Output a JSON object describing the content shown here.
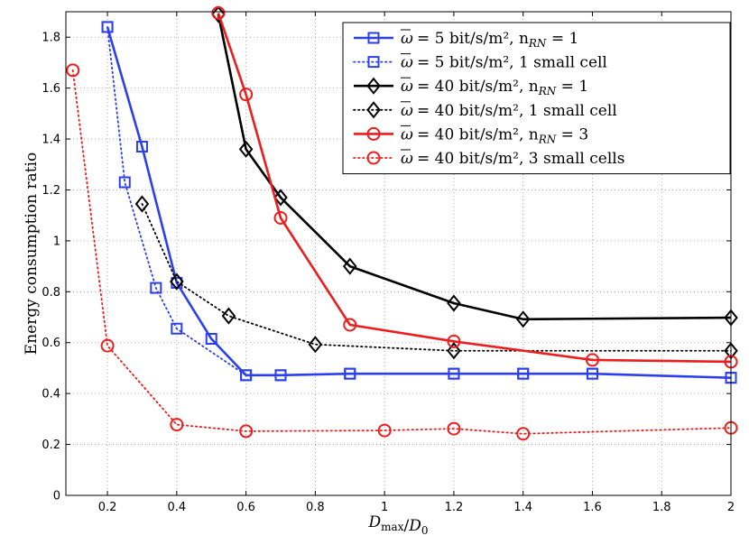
{
  "chart_data": {
    "type": "line",
    "title": "",
    "xlabel": "D_max/D_0",
    "ylabel": "Energy consumption ratio",
    "xlim": [
      0.08,
      2.0
    ],
    "ylim": [
      0,
      1.9
    ],
    "xticks": [
      0.2,
      0.4,
      0.6,
      0.8,
      1,
      1.2,
      1.4,
      1.6,
      1.8,
      2
    ],
    "xtick_labels": [
      "0.2",
      "0.4",
      "0.6",
      "0.8",
      "1",
      "1.2",
      "1.4",
      "1.6",
      "1.8",
      "2"
    ],
    "yticks": [
      0,
      0.2,
      0.4,
      0.6,
      0.8,
      1,
      1.2,
      1.4,
      1.6,
      1.8
    ],
    "ytick_labels": [
      "0",
      "0.2",
      "0.4",
      "0.6",
      "0.8",
      "1",
      "1.2",
      "1.4",
      "1.6",
      "1.8"
    ],
    "grid": true,
    "legend_position": "top-right",
    "series": [
      {
        "name": "ω̄ = 5 bit/s/m², n_RN = 1",
        "legend": "= 5 bit/s/m², n",
        "legend_sub": "RN",
        "legend_tail": "= 1",
        "color": "#2b3ff0",
        "line_style": "solid",
        "marker": "square",
        "x": [
          0.2,
          0.3,
          0.4,
          0.5,
          0.6,
          0.7,
          0.9,
          1.2,
          1.4,
          1.6,
          2.0
        ],
        "values": [
          1.84,
          1.37,
          0.835,
          0.615,
          0.472,
          0.472,
          0.478,
          0.478,
          0.478,
          0.478,
          0.462
        ]
      },
      {
        "name": "ω̄ = 5 bit/s/m², 1 small cell",
        "legend": "= 5 bit/s/m², 1 small cell",
        "legend_sub": "",
        "legend_tail": "",
        "color": "#2b3ff0",
        "line_style": "dotted",
        "marker": "square",
        "x": [
          0.2,
          0.25,
          0.34,
          0.4,
          0.6,
          0.7,
          0.9,
          1.2,
          1.4,
          1.6,
          2.0
        ],
        "values": [
          1.84,
          1.23,
          0.815,
          0.655,
          0.472,
          0.472,
          0.478,
          0.478,
          0.478,
          0.478,
          0.462
        ]
      },
      {
        "name": "ω̄ = 40 bit/s/m², n_RN = 1",
        "legend": "= 40 bit/s/m², n",
        "legend_sub": "RN",
        "legend_tail": "= 1",
        "color": "#000000",
        "line_style": "solid",
        "marker": "diamond",
        "x": [
          0.52,
          0.6,
          0.7,
          0.9,
          1.2,
          1.4,
          2.0
        ],
        "values": [
          1.89,
          1.36,
          1.17,
          0.9,
          0.755,
          0.692,
          0.698
        ]
      },
      {
        "name": "ω̄ = 40 bit/s/m², 1 small cell",
        "legend": "= 40 bit/s/m², 1 small cell",
        "legend_sub": "",
        "legend_tail": "",
        "color": "#000000",
        "line_style": "dotted",
        "marker": "diamond",
        "x": [
          0.3,
          0.4,
          0.55,
          0.8,
          1.2,
          2.0
        ],
        "values": [
          1.145,
          0.84,
          0.705,
          0.593,
          0.568,
          0.568
        ]
      },
      {
        "name": "ω̄ = 40 bit/s/m², n_RN = 3",
        "legend": "= 40 bit/s/m², n",
        "legend_sub": "RN",
        "legend_tail": "= 3",
        "color": "#ee1c1c",
        "line_style": "solid",
        "marker": "circle",
        "x": [
          0.52,
          0.6,
          0.7,
          0.9,
          1.2,
          1.6,
          2.0
        ],
        "values": [
          1.895,
          1.575,
          1.09,
          0.67,
          0.605,
          0.532,
          0.525
        ]
      },
      {
        "name": "ω̄ = 40 bit/s/m², 3 small cells",
        "legend": "= 40 bit/s/m², 3 small cells",
        "legend_sub": "",
        "legend_tail": "",
        "color": "#ee1c1c",
        "line_style": "dotted",
        "marker": "circle",
        "x": [
          0.1,
          0.2,
          0.4,
          0.6,
          1.0,
          1.2,
          1.4,
          2.0
        ],
        "values": [
          1.67,
          0.588,
          0.278,
          0.252,
          0.255,
          0.262,
          0.242,
          0.265
        ]
      }
    ]
  }
}
